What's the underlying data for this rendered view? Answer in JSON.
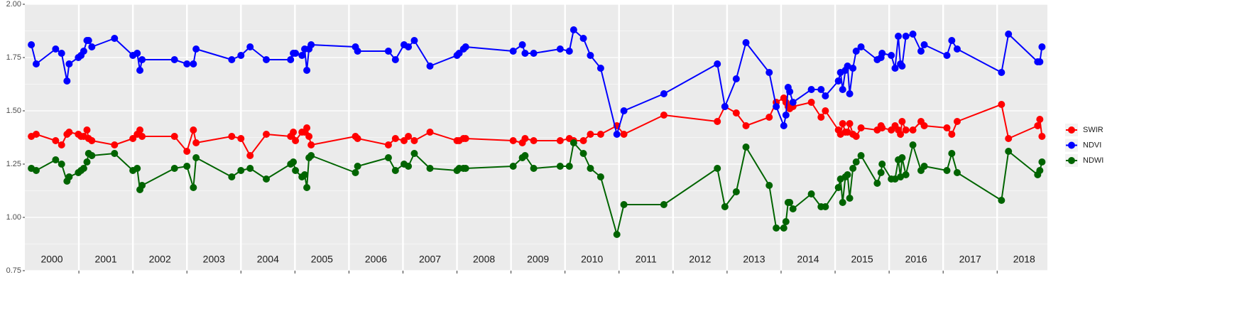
{
  "chart_data": {
    "type": "line",
    "x": [
      2000.12,
      2000.21,
      2000.57,
      2000.68,
      2000.78,
      2000.82,
      2000.99,
      2001.04,
      2001.09,
      2001.15,
      2001.18,
      2001.24,
      2001.66,
      2002.0,
      2002.08,
      2002.13,
      2002.17,
      2002.77,
      2003.0,
      2003.12,
      2003.17,
      2003.83,
      2004.0,
      2004.17,
      2004.47,
      2004.92,
      2004.97,
      2005.01,
      2005.13,
      2005.18,
      2005.22,
      2005.26,
      2005.3,
      2006.12,
      2006.16,
      2006.73,
      2006.86,
      2007.02,
      2007.1,
      2007.21,
      2007.5,
      2008.0,
      2008.04,
      2008.12,
      2008.16,
      2009.04,
      2009.21,
      2009.26,
      2009.42,
      2009.91,
      2010.08,
      2010.16,
      2010.34,
      2010.47,
      2010.66,
      2010.96,
      2011.09,
      2011.83,
      2012.82,
      2012.96,
      2013.17,
      2013.35,
      2013.78,
      2013.91,
      2014.05,
      2014.09,
      2014.13,
      2014.16,
      2014.22,
      2014.56,
      2014.74,
      2014.82,
      2015.06,
      2015.1,
      2015.14,
      2015.19,
      2015.23,
      2015.27,
      2015.33,
      2015.39,
      2015.48,
      2015.78,
      2015.85,
      2015.87,
      2016.04,
      2016.11,
      2016.17,
      2016.21,
      2016.24,
      2016.31,
      2016.44,
      2016.59,
      2016.65,
      2017.07,
      2017.16,
      2017.26,
      2018.08,
      2018.21,
      2018.75,
      2018.79,
      2018.83
    ],
    "series": [
      {
        "name": "SWIR",
        "color": "#ff0000",
        "values": [
          1.38,
          1.39,
          1.36,
          1.34,
          1.39,
          1.4,
          1.39,
          1.38,
          1.38,
          1.41,
          1.37,
          1.36,
          1.34,
          1.37,
          1.39,
          1.41,
          1.38,
          1.38,
          1.31,
          1.41,
          1.35,
          1.38,
          1.37,
          1.29,
          1.39,
          1.38,
          1.4,
          1.36,
          1.4,
          1.4,
          1.42,
          1.38,
          1.34,
          1.38,
          1.37,
          1.34,
          1.37,
          1.36,
          1.38,
          1.36,
          1.4,
          1.36,
          1.36,
          1.37,
          1.37,
          1.36,
          1.35,
          1.37,
          1.36,
          1.36,
          1.37,
          1.36,
          1.36,
          1.39,
          1.39,
          1.43,
          1.39,
          1.48,
          1.45,
          1.52,
          1.49,
          1.43,
          1.47,
          1.54,
          1.56,
          1.54,
          1.52,
          1.51,
          1.52,
          1.54,
          1.47,
          1.5,
          1.41,
          1.39,
          1.44,
          1.4,
          1.4,
          1.44,
          1.39,
          1.38,
          1.42,
          1.41,
          1.43,
          1.42,
          1.41,
          1.43,
          1.41,
          1.39,
          1.45,
          1.41,
          1.41,
          1.45,
          1.43,
          1.42,
          1.39,
          1.45,
          1.53,
          1.37,
          1.43,
          1.46,
          1.38
        ]
      },
      {
        "name": "NDVI",
        "color": "#0000ff",
        "values": [
          1.81,
          1.72,
          1.79,
          1.77,
          1.64,
          1.72,
          1.75,
          1.76,
          1.78,
          1.83,
          1.83,
          1.8,
          1.84,
          1.76,
          1.77,
          1.69,
          1.74,
          1.74,
          1.72,
          1.72,
          1.79,
          1.74,
          1.76,
          1.8,
          1.74,
          1.74,
          1.77,
          1.77,
          1.76,
          1.79,
          1.69,
          1.79,
          1.81,
          1.8,
          1.78,
          1.78,
          1.74,
          1.81,
          1.8,
          1.83,
          1.71,
          1.76,
          1.77,
          1.79,
          1.8,
          1.78,
          1.81,
          1.77,
          1.77,
          1.79,
          1.78,
          1.88,
          1.84,
          1.76,
          1.7,
          1.39,
          1.5,
          1.58,
          1.72,
          1.52,
          1.65,
          1.82,
          1.68,
          1.52,
          1.43,
          1.48,
          1.61,
          1.59,
          1.54,
          1.6,
          1.6,
          1.57,
          1.64,
          1.68,
          1.6,
          1.69,
          1.71,
          1.58,
          1.7,
          1.78,
          1.8,
          1.74,
          1.75,
          1.77,
          1.76,
          1.7,
          1.85,
          1.72,
          1.71,
          1.85,
          1.86,
          1.78,
          1.81,
          1.76,
          1.83,
          1.79,
          1.68,
          1.86,
          1.73,
          1.73,
          1.8
        ]
      },
      {
        "name": "NDWI",
        "color": "#006400",
        "values": [
          1.23,
          1.22,
          1.27,
          1.25,
          1.17,
          1.19,
          1.21,
          1.22,
          1.23,
          1.26,
          1.3,
          1.29,
          1.3,
          1.22,
          1.23,
          1.13,
          1.15,
          1.23,
          1.24,
          1.14,
          1.28,
          1.19,
          1.22,
          1.23,
          1.18,
          1.25,
          1.26,
          1.22,
          1.19,
          1.2,
          1.14,
          1.28,
          1.29,
          1.21,
          1.24,
          1.28,
          1.22,
          1.25,
          1.24,
          1.3,
          1.23,
          1.22,
          1.23,
          1.23,
          1.23,
          1.24,
          1.28,
          1.29,
          1.23,
          1.24,
          1.24,
          1.35,
          1.3,
          1.23,
          1.19,
          0.92,
          1.06,
          1.06,
          1.23,
          1.05,
          1.12,
          1.33,
          1.15,
          0.95,
          0.95,
          0.98,
          1.07,
          1.07,
          1.04,
          1.11,
          1.05,
          1.05,
          1.14,
          1.18,
          1.07,
          1.19,
          1.2,
          1.09,
          1.23,
          1.26,
          1.29,
          1.16,
          1.21,
          1.25,
          1.18,
          1.18,
          1.27,
          1.19,
          1.28,
          1.2,
          1.34,
          1.22,
          1.24,
          1.22,
          1.3,
          1.21,
          1.08,
          1.31,
          1.2,
          1.22,
          1.26
        ]
      }
    ],
    "xlim": [
      2000.0,
      2018.93
    ],
    "xticks": [
      {
        "value": 2000.5,
        "label": "2000"
      },
      {
        "value": 2001.5,
        "label": "2001"
      },
      {
        "value": 2002.5,
        "label": "2002"
      },
      {
        "value": 2003.5,
        "label": "2003"
      },
      {
        "value": 2004.5,
        "label": "2004"
      },
      {
        "value": 2005.5,
        "label": "2005"
      },
      {
        "value": 2006.5,
        "label": "2006"
      },
      {
        "value": 2007.5,
        "label": "2007"
      },
      {
        "value": 2008.5,
        "label": "2008"
      },
      {
        "value": 2009.5,
        "label": "2009"
      },
      {
        "value": 2010.5,
        "label": "2010"
      },
      {
        "value": 2011.5,
        "label": "2011"
      },
      {
        "value": 2012.5,
        "label": "2012"
      },
      {
        "value": 2013.5,
        "label": "2013"
      },
      {
        "value": 2014.5,
        "label": "2014"
      },
      {
        "value": 2015.5,
        "label": "2015"
      },
      {
        "value": 2016.5,
        "label": "2016"
      },
      {
        "value": 2017.5,
        "label": "2017"
      },
      {
        "value": 2018.5,
        "label": "2018"
      }
    ],
    "x_grid": [
      2001,
      2002,
      2003,
      2004,
      2005,
      2006,
      2007,
      2008,
      2009,
      2010,
      2011,
      2012,
      2013,
      2014,
      2015,
      2016,
      2017,
      2018
    ],
    "ylim": [
      0.75,
      2.0
    ],
    "yticks": [
      {
        "value": 0.75,
        "label": "0.75"
      },
      {
        "value": 1.0,
        "label": "1.00"
      },
      {
        "value": 1.25,
        "label": "1.25"
      },
      {
        "value": 1.5,
        "label": "1.50"
      },
      {
        "value": 1.75,
        "label": "1.75"
      },
      {
        "value": 2.0,
        "label": "2.00"
      }
    ],
    "grid": true,
    "legend": "right"
  }
}
